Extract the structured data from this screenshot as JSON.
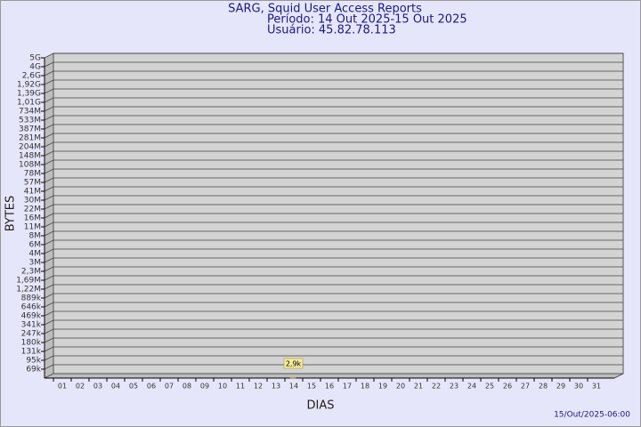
{
  "chart_data": {
    "type": "bar",
    "title": "SARG, Squid User Access Reports",
    "subtitle": [
      "Período: 14 Out 2025-15 Out 2025",
      "Usuário: 45.82.78.113"
    ],
    "xlabel": "DIAS",
    "ylabel": "BYTES",
    "footer": "15/Out/2025-06:00",
    "categories": [
      "01",
      "02",
      "03",
      "04",
      "05",
      "06",
      "07",
      "08",
      "09",
      "10",
      "11",
      "12",
      "13",
      "14",
      "15",
      "16",
      "17",
      "18",
      "19",
      "20",
      "21",
      "22",
      "23",
      "24",
      "25",
      "26",
      "27",
      "28",
      "29",
      "30",
      "31"
    ],
    "values": [
      null,
      null,
      null,
      null,
      null,
      null,
      null,
      null,
      null,
      null,
      null,
      null,
      null,
      2900,
      null,
      null,
      null,
      null,
      null,
      null,
      null,
      null,
      null,
      null,
      null,
      null,
      null,
      null,
      null,
      null,
      null
    ],
    "value_labels": [
      null,
      null,
      null,
      null,
      null,
      null,
      null,
      null,
      null,
      null,
      null,
      null,
      null,
      "2,9k",
      null,
      null,
      null,
      null,
      null,
      null,
      null,
      null,
      null,
      null,
      null,
      null,
      null,
      null,
      null,
      null,
      null
    ],
    "color": "#f5e27a",
    "ylim": [
      0,
      5000000000
    ],
    "yticks": [
      {
        "value": 69000,
        "label": "69k"
      },
      {
        "value": 95000,
        "label": "95k"
      },
      {
        "value": 131000,
        "label": "131k"
      },
      {
        "value": 180000,
        "label": "180k"
      },
      {
        "value": 247000,
        "label": "247k"
      },
      {
        "value": 341000,
        "label": "341k"
      },
      {
        "value": 469000,
        "label": "469k"
      },
      {
        "value": 646000,
        "label": "646k"
      },
      {
        "value": 889000,
        "label": "889k"
      },
      {
        "value": 1220000,
        "label": "1,22M"
      },
      {
        "value": 1690000,
        "label": "1,69M"
      },
      {
        "value": 2300000,
        "label": "2,3M"
      },
      {
        "value": 3000000,
        "label": "3M"
      },
      {
        "value": 4000000,
        "label": "4M"
      },
      {
        "value": 6000000,
        "label": "6M"
      },
      {
        "value": 8000000,
        "label": "8M"
      },
      {
        "value": 11000000,
        "label": "11M"
      },
      {
        "value": 16000000,
        "label": "16M"
      },
      {
        "value": 22000000,
        "label": "22M"
      },
      {
        "value": 30000000,
        "label": "30M"
      },
      {
        "value": 41000000,
        "label": "41M"
      },
      {
        "value": 57000000,
        "label": "57M"
      },
      {
        "value": 78000000,
        "label": "78M"
      },
      {
        "value": 108000000,
        "label": "108M"
      },
      {
        "value": 148000000,
        "label": "148M"
      },
      {
        "value": 204000000,
        "label": "204M"
      },
      {
        "value": 281000000,
        "label": "281M"
      },
      {
        "value": 387000000,
        "label": "387M"
      },
      {
        "value": 533000000,
        "label": "533M"
      },
      {
        "value": 734000000,
        "label": "734M"
      },
      {
        "value": 1010000000,
        "label": "1,01G"
      },
      {
        "value": 1390000000,
        "label": "1,39G"
      },
      {
        "value": 1920000000,
        "label": "1,92G"
      },
      {
        "value": 2600000000,
        "label": "2,6G"
      },
      {
        "value": 4000000000,
        "label": "4G"
      },
      {
        "value": 5000000000,
        "label": "5G"
      }
    ],
    "grid": true
  }
}
